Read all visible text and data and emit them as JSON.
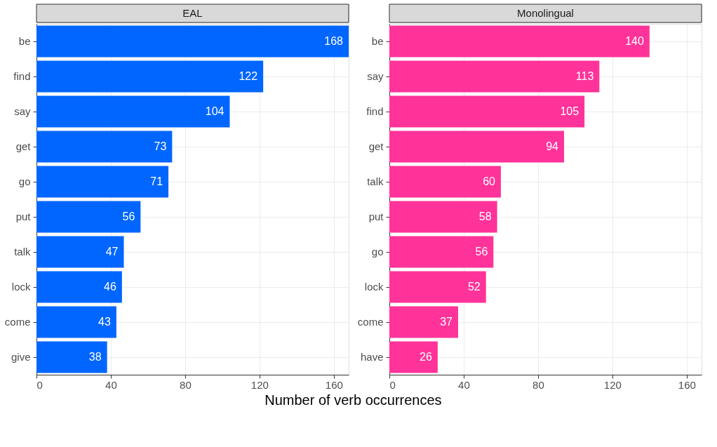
{
  "chart_data": [
    {
      "type": "bar",
      "orientation": "horizontal",
      "title": "EAL",
      "xlabel": "Number of verb occurrences",
      "categories": [
        "be",
        "find",
        "say",
        "get",
        "go",
        "put",
        "talk",
        "lock",
        "come",
        "give"
      ],
      "values": [
        168,
        122,
        104,
        73,
        71,
        56,
        47,
        46,
        43,
        38
      ],
      "color": "#0066ff",
      "xlim": [
        0,
        168
      ],
      "xticks": [
        0,
        40,
        80,
        120,
        160
      ],
      "grid": true,
      "data_labels": true
    },
    {
      "type": "bar",
      "orientation": "horizontal",
      "title": "Monolingual",
      "categories": [
        "be",
        "say",
        "find",
        "get",
        "talk",
        "put",
        "go",
        "lock",
        "come",
        "have"
      ],
      "values": [
        140,
        113,
        105,
        94,
        60,
        58,
        56,
        52,
        37,
        26
      ],
      "color": "#ff3399",
      "xlim": [
        0,
        168
      ],
      "xticks": [
        0,
        40,
        80,
        120,
        160
      ],
      "grid": true,
      "data_labels": true
    }
  ]
}
